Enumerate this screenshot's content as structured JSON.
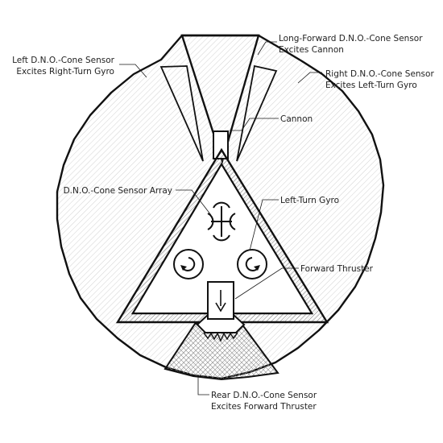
{
  "labels": {
    "long_forward": "Long-Forward D.N.O.-Cone Sensor",
    "long_forward_effect": "Excites Cannon",
    "left_sensor": "Left D.N.O.-Cone Sensor",
    "left_sensor_effect": "Excites Right-Turn Gyro",
    "right_sensor": "Right D.N.O.-Cone Sensor",
    "right_sensor_effect": "Excites Left-Turn Gyro",
    "cannon": "Cannon",
    "sensor_array": "D.N.O.-Cone Sensor Array",
    "left_turn_gyro": "Left-Turn Gyro",
    "forward_thruster": "Forward Thruster",
    "rear_sensor": "Rear D.N.O.-Cone Sensor",
    "rear_sensor_effect": "Excites Forward Thruster"
  },
  "colors": {
    "line": "#111111",
    "hatch": "#9a9a9a",
    "background": "#ffffff"
  }
}
